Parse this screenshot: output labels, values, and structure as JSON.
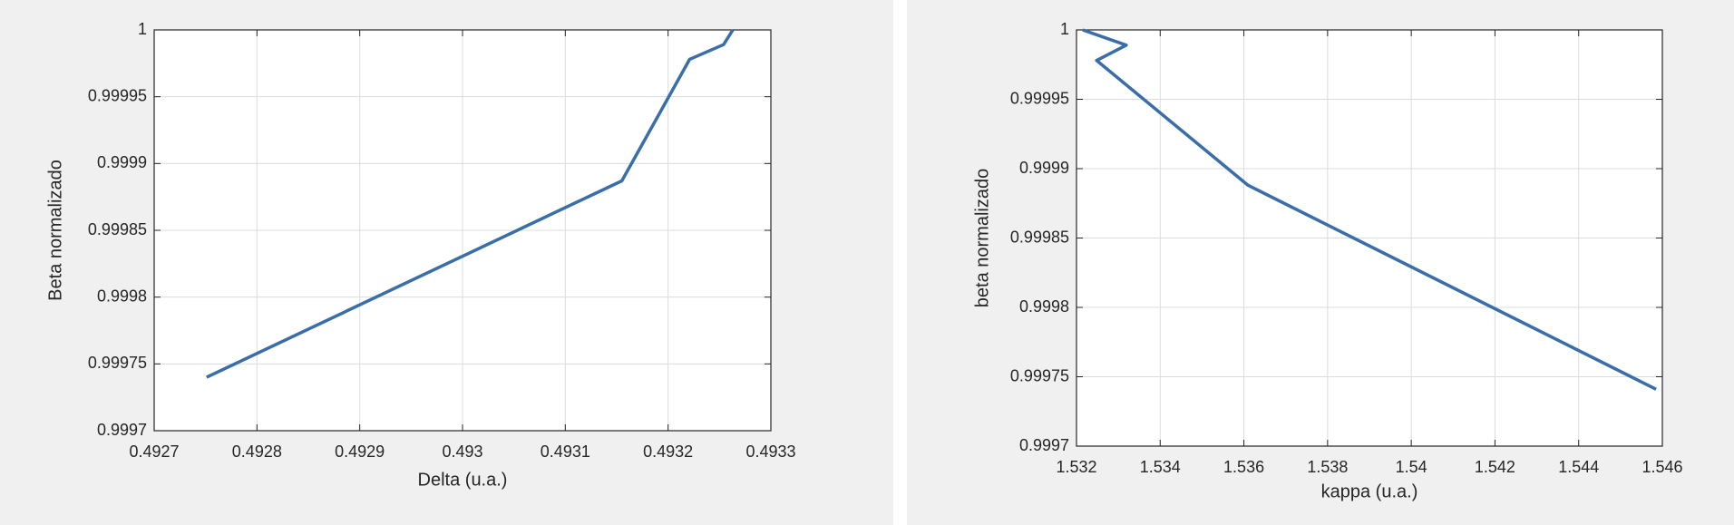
{
  "chart_data": [
    {
      "type": "line",
      "xlabel": "Delta (u.a.)",
      "ylabel": "Beta normalizado",
      "x": [
        0.492751,
        0.493155,
        0.493221,
        0.493254,
        0.493263
      ],
      "values": [
        0.99974,
        0.999887,
        0.999978,
        0.999989,
        1
      ],
      "color": "#3a6ea8",
      "xlim": [
        0.4927,
        0.4933
      ],
      "xticks": [
        0.4927,
        0.4928,
        0.4929,
        0.493,
        0.4931,
        0.4932,
        0.4933
      ],
      "ylim": [
        0.9997,
        1
      ],
      "yticks": [
        0.9997,
        0.99975,
        0.9998,
        0.99985,
        0.9999,
        0.99995,
        1
      ],
      "grid": true
    },
    {
      "type": "line",
      "xlabel": "kappa (u.a.)",
      "ylabel": "beta normalizado",
      "x": [
        1.53215,
        1.53319,
        1.53248,
        1.5361,
        1.54585
      ],
      "values": [
        1,
        0.999989,
        0.999978,
        0.999888,
        0.999741
      ],
      "color": "#3a6ea8",
      "xlim": [
        1.532,
        1.546
      ],
      "xticks": [
        1.532,
        1.534,
        1.536,
        1.538,
        1.54,
        1.542,
        1.544,
        1.546
      ],
      "ylim": [
        0.9997,
        1
      ],
      "yticks": [
        0.9997,
        0.99975,
        0.9998,
        0.99985,
        0.9999,
        0.99995,
        1
      ],
      "grid": true
    }
  ]
}
